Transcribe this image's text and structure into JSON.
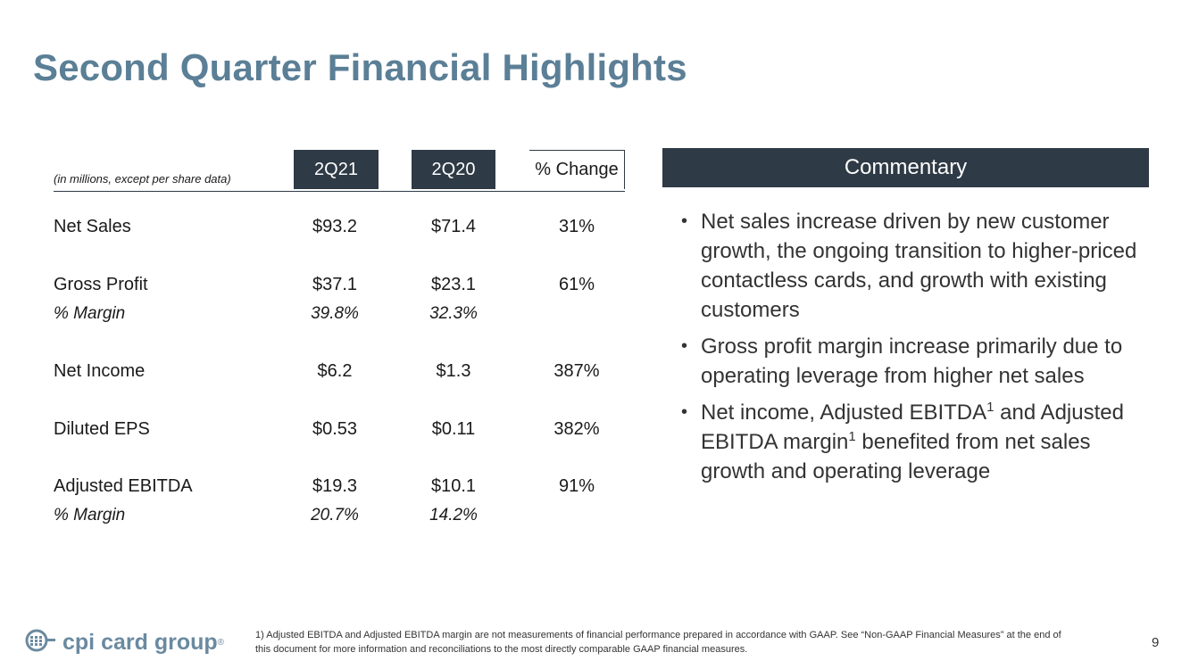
{
  "slide": {
    "title": "Second Quarter Financial Highlights",
    "page_number": "9"
  },
  "table": {
    "units_note": "(in millions, except per share data)",
    "columns": [
      "2Q21",
      "2Q20",
      "% Change"
    ],
    "rows": [
      {
        "label": "Net Sales",
        "v1": "$93.2",
        "v2": "$71.4",
        "v3": "31%"
      },
      {
        "label": "Gross Profit",
        "v1": "$37.1",
        "v2": "$23.1",
        "v3": "61%"
      },
      {
        "label": "% Margin",
        "v1": "39.8%",
        "v2": "32.3%",
        "v3": ""
      },
      {
        "label": "Net Income",
        "v1": "$6.2",
        "v2": "$1.3",
        "v3": "387%"
      },
      {
        "label": "Diluted EPS",
        "v1": "$0.53",
        "v2": "$0.11",
        "v3": "382%"
      },
      {
        "label": "Adjusted EBITDA",
        "v1": "$19.3",
        "v2": "$10.1",
        "v3": "91%"
      },
      {
        "label": "% Margin",
        "v1": "20.7%",
        "v2": "14.2%",
        "v3": ""
      }
    ]
  },
  "commentary": {
    "header": "Commentary",
    "bullet_1": "Net sales increase driven by new customer growth, the ongoing transition to higher-priced contactless cards, and growth with existing customers",
    "bullet_2": "Gross profit margin increase primarily due to operating leverage from higher net sales",
    "bullet_3_a": "Net income, Adjusted EBITDA",
    "bullet_3_b": " and Adjusted EBITDA margin",
    "bullet_3_c": " benefited from net sales growth and operating leverage",
    "superscript": "1"
  },
  "footer": {
    "logo_text": "cpi card group",
    "logo_reg": "®",
    "footnote": "1) Adjusted EBITDA and Adjusted EBITDA margin are not measurements of financial performance prepared in accordance with GAAP. See “Non-GAAP Financial Measures” at the end of this document for more information and reconciliations to the most directly comparable GAAP financial measures."
  },
  "colors": {
    "title": "#5b7f96",
    "header_fill": "#2e3a45",
    "logo": "#6b8aa0"
  }
}
